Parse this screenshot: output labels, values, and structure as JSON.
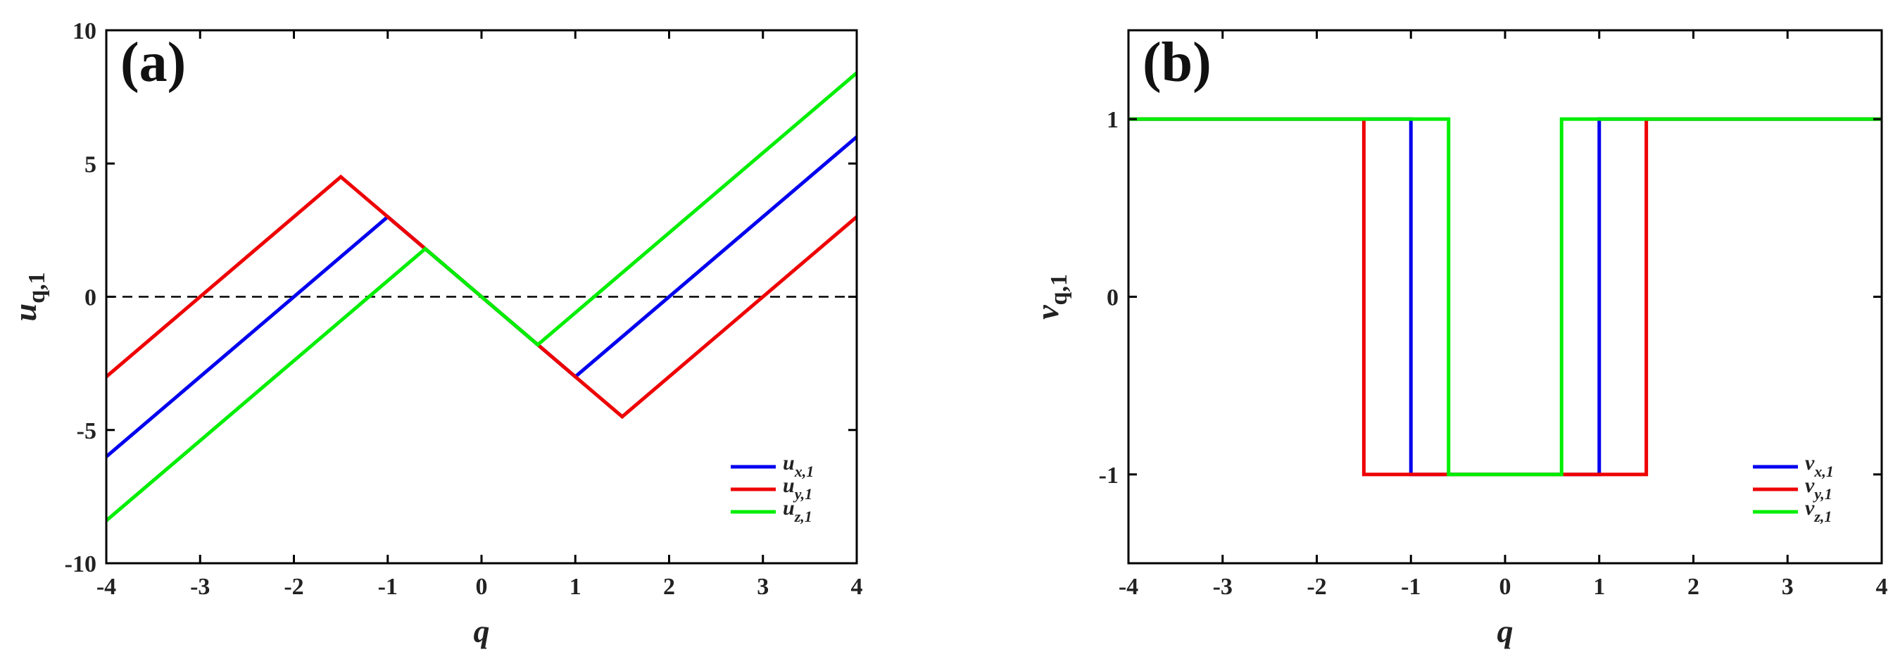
{
  "chart_data": [
    {
      "type": "line",
      "panel_label": "(a)",
      "xlabel": "q",
      "ylabel": {
        "main": "u",
        "sub": "q,1"
      },
      "xlim": [
        -4,
        4
      ],
      "ylim": [
        -10,
        10
      ],
      "xticks": [
        "-4",
        "-3",
        "-2",
        "-1",
        "0",
        "1",
        "2",
        "3",
        "4"
      ],
      "yticks": [
        "-10",
        "-5",
        "0",
        "5",
        "10"
      ],
      "xtick_values": [
        -4,
        -3,
        -2,
        -1,
        0,
        1,
        2,
        3,
        4
      ],
      "ytick_values": [
        -10,
        -5,
        0,
        5,
        10
      ],
      "reference_line": {
        "y": 0,
        "style": "dashed",
        "color": "#000000"
      },
      "legend_position": "bottom-right",
      "series": [
        {
          "name": "u",
          "sub": "x,1",
          "color": "#0000ee",
          "x": [
            -4,
            -1,
            -1,
            1,
            1,
            4
          ],
          "y": [
            -6,
            3,
            3,
            -3,
            -3,
            6
          ]
        },
        {
          "name": "u",
          "sub": "y,1",
          "color": "#ee0000",
          "x": [
            -4,
            -1.5,
            1.5,
            4
          ],
          "y": [
            -3,
            4.5,
            -4.5,
            3
          ]
        },
        {
          "name": "u",
          "sub": "z,1",
          "color": "#00ee00",
          "x": [
            -4,
            -0.6,
            0.6,
            4
          ],
          "y": [
            -8.4,
            1.8,
            -1.8,
            8.4
          ]
        }
      ]
    },
    {
      "type": "line",
      "panel_label": "(b)",
      "xlabel": "q",
      "ylabel": {
        "main": "v",
        "sub": "q,1"
      },
      "xlim": [
        -4,
        4
      ],
      "ylim": [
        -1.5,
        1.5
      ],
      "xticks": [
        "-4",
        "-3",
        "-2",
        "-1",
        "0",
        "1",
        "2",
        "3",
        "4"
      ],
      "yticks": [
        "-1",
        "0",
        "1"
      ],
      "xtick_values": [
        -4,
        -3,
        -2,
        -1,
        0,
        1,
        2,
        3,
        4
      ],
      "ytick_values": [
        -1,
        0,
        1
      ],
      "legend_position": "bottom-right",
      "series": [
        {
          "name": "v",
          "sub": "x,1",
          "color": "#0000ee",
          "x": [
            -4,
            -1,
            -1,
            1,
            1,
            4
          ],
          "y": [
            1,
            1,
            -1,
            -1,
            1,
            1
          ]
        },
        {
          "name": "v",
          "sub": "y,1",
          "color": "#ee0000",
          "x": [
            -4,
            -1.5,
            -1.5,
            1.5,
            1.5,
            4
          ],
          "y": [
            1,
            1,
            -1,
            -1,
            1,
            1
          ]
        },
        {
          "name": "v",
          "sub": "z,1",
          "color": "#00ee00",
          "x": [
            -4,
            -0.6,
            -0.6,
            0.6,
            0.6,
            4
          ],
          "y": [
            1,
            1,
            -1,
            -1,
            1,
            1
          ]
        }
      ]
    }
  ]
}
